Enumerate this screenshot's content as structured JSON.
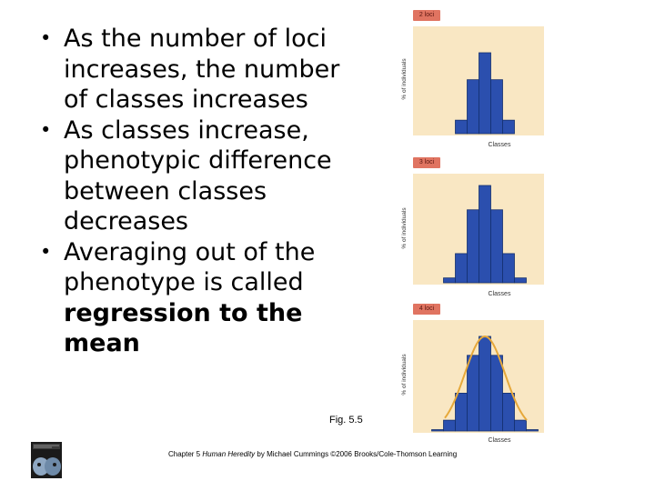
{
  "bullets": [
    {
      "text": "As the number of loci increases, the number of classes increases",
      "bold": ""
    },
    {
      "text": "As classes increase, phenotypic difference between classes decreases",
      "bold": ""
    },
    {
      "text": "Averaging out of the phenotype is called ",
      "bold": "regression to the mean"
    }
  ],
  "figure_label": "Fig. 5.5",
  "caption": {
    "prefix": "Chapter 5 ",
    "book_title": "Human Heredity",
    "suffix": " by Michael Cummings ©2006 Brooks/Cole-Thomson Learning"
  },
  "colors": {
    "bar_fill": "#2b4fae",
    "bar_stroke": "#15306e",
    "panel_bg": "#f9e7c3",
    "curve": "#e6a83a",
    "tag_bg": "#e07461"
  },
  "chart_data": [
    {
      "type": "bar",
      "tag": "2 loci",
      "xlabel": "Classes",
      "ylabel": "% of individuals",
      "values": [
        1,
        4,
        6,
        4,
        1
      ],
      "ymax": 6,
      "curve": false
    },
    {
      "type": "bar",
      "tag": "3 loci",
      "xlabel": "Classes",
      "ylabel": "% of individuals",
      "values": [
        1,
        6,
        15,
        20,
        15,
        6,
        1
      ],
      "ymax": 20,
      "curve": false
    },
    {
      "type": "bar",
      "tag": "4 loci",
      "xlabel": "Classes",
      "ylabel": "% of individuals",
      "values": [
        1,
        8,
        28,
        56,
        70,
        56,
        28,
        8,
        1
      ],
      "ymax": 70,
      "curve": true
    }
  ]
}
